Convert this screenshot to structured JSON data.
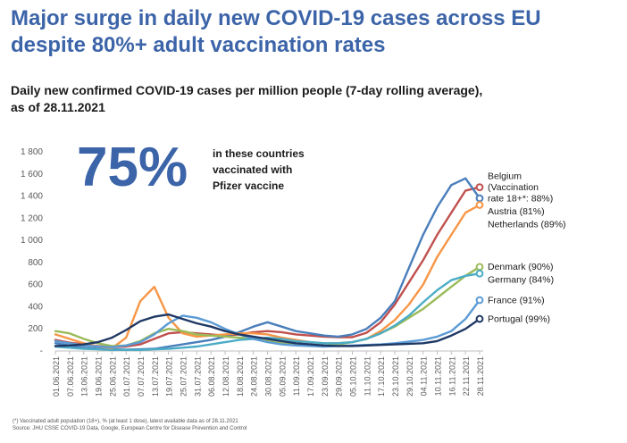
{
  "headline_line1": "Major surge in daily new COVID-19 cases across EU",
  "headline_line2": "despite 80%+ adult vaccination rates",
  "subtitle_line1": "Daily new confirmed COVID-19 cases per million people (7-day rolling average),",
  "subtitle_line2": "as of 28.11.2021",
  "callout": {
    "big_number": "75%",
    "line1": "in these countries",
    "line2": "vaccinated with",
    "line3": "Pfizer vaccine",
    "color": "#3c64a8"
  },
  "footnote_line1": "(*) Vaccinated adult population (18+), % (at least 1 dose), latest available data as of 28.11.2021",
  "footnote_line2": "Source: JHU CSSE COVID-19 Data, Google, European  Centre for Disease Prevention and Control",
  "chart_data": {
    "type": "line",
    "title": "Daily new confirmed COVID-19 cases per million people (7-day rolling average), as of 28.11.2021",
    "ylim": [
      0,
      1800
    ],
    "y_ticks": [
      0,
      200,
      400,
      600,
      800,
      1000,
      1200,
      1400,
      1600,
      1800
    ],
    "y_tick_labels": [
      "-",
      "200",
      "400",
      "600",
      "800",
      "1 000",
      "1 200",
      "1 400",
      "1 600",
      "1 800"
    ],
    "x_tick_labels": [
      "01.06.2021",
      "07.06.2021",
      "13.06.2021",
      "19.06.2021",
      "25.06.2021",
      "01.07.2021",
      "07.07.2021",
      "13.07.2021",
      "19.07.2021",
      "25.07.2021",
      "31.07.2021",
      "06.08.2021",
      "12.08.2021",
      "18.08.2021",
      "24.08.2021",
      "30.08.2021",
      "05.09.2021",
      "11.09.2021",
      "17.09.2021",
      "23.09.2021",
      "29.09.2021",
      "05.10.2021",
      "11.10.2021",
      "17.10.2021",
      "23.10.2021",
      "29.10.2021",
      "04.11.2021",
      "10.11.2021",
      "16.11.2021",
      "22.11.2021",
      "28.11.2021"
    ],
    "grid": false,
    "legend": "right-end labels",
    "series": [
      {
        "name": "Belgium",
        "label_lines": [
          "Belgium",
          "(Vaccination",
          "rate 18+*: 88%)"
        ],
        "color": "#c0504d",
        "values": [
          100,
          75,
          60,
          45,
          35,
          40,
          60,
          110,
          160,
          170,
          160,
          150,
          140,
          150,
          170,
          180,
          170,
          150,
          140,
          130,
          125,
          125,
          165,
          260,
          420,
          620,
          820,
          1050,
          1250,
          1450,
          1480
        ]
      },
      {
        "name": "Austria (81%)",
        "label_lines": [
          "Austria (81%)"
        ],
        "color": "#4a7ebb",
        "values": [
          70,
          50,
          30,
          20,
          15,
          12,
          15,
          20,
          40,
          60,
          80,
          100,
          130,
          170,
          220,
          260,
          220,
          180,
          160,
          140,
          130,
          150,
          200,
          300,
          450,
          750,
          1050,
          1300,
          1500,
          1560,
          1380
        ]
      },
      {
        "name": "Netherlands (89%)",
        "label_lines": [
          "Netherlands (89%)"
        ],
        "color": "#f79646",
        "values": [
          150,
          110,
          70,
          40,
          25,
          120,
          450,
          580,
          300,
          160,
          130,
          140,
          150,
          160,
          160,
          150,
          120,
          100,
          80,
          70,
          70,
          80,
          110,
          180,
          280,
          420,
          600,
          850,
          1050,
          1250,
          1320
        ]
      },
      {
        "name": "Denmark (90%)",
        "label_lines": [
          "Denmark (90%)"
        ],
        "color": "#9bbb59",
        "values": [
          180,
          160,
          110,
          70,
          45,
          50,
          90,
          160,
          200,
          180,
          150,
          140,
          130,
          120,
          110,
          90,
          70,
          55,
          50,
          45,
          60,
          80,
          110,
          160,
          220,
          300,
          380,
          480,
          580,
          680,
          760
        ]
      },
      {
        "name": "Germany (84%)",
        "label_lines": [
          "Germany (84%)"
        ],
        "color": "#4bacc6",
        "values": [
          40,
          30,
          20,
          15,
          10,
          10,
          10,
          15,
          20,
          30,
          40,
          60,
          80,
          100,
          110,
          120,
          110,
          90,
          80,
          70,
          70,
          80,
          110,
          160,
          230,
          320,
          440,
          550,
          640,
          680,
          700
        ]
      },
      {
        "name": "France (91%)",
        "label_lines": [
          "France (91%)"
        ],
        "color": "#5b9bd5",
        "values": [
          90,
          70,
          50,
          40,
          35,
          50,
          80,
          150,
          250,
          320,
          300,
          260,
          200,
          150,
          110,
          80,
          60,
          50,
          45,
          40,
          45,
          50,
          55,
          60,
          70,
          85,
          100,
          130,
          180,
          290,
          460
        ]
      },
      {
        "name": "Portugal (99%)",
        "label_lines": [
          "Portugal (99%)"
        ],
        "color": "#1f3864",
        "values": [
          45,
          50,
          60,
          80,
          120,
          190,
          270,
          310,
          330,
          290,
          250,
          220,
          180,
          150,
          130,
          110,
          90,
          70,
          60,
          50,
          45,
          45,
          50,
          55,
          60,
          65,
          70,
          90,
          140,
          200,
          290
        ]
      }
    ]
  }
}
